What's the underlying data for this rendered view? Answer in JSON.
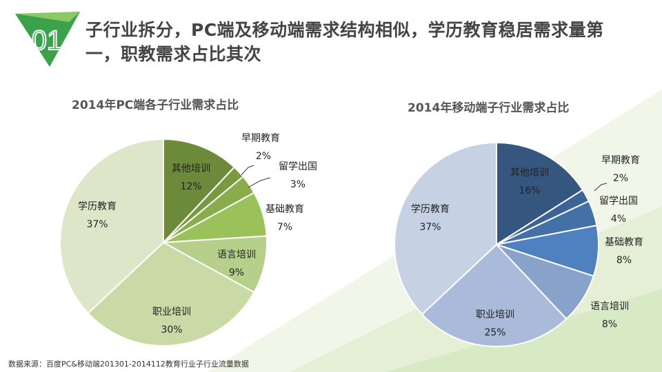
{
  "header": {
    "number": "01",
    "title": "子行业拆分，PC端及移动端需求结构相似，学历教育稳居需求量第一，职教需求占比其次"
  },
  "source": "数据来源：百度PC&移动端201301-2014112教育行业子行业流量数据",
  "chart_data": [
    {
      "type": "pie",
      "title": "2014年PC端各子行业需求占比",
      "categories": [
        "其他培训",
        "早期教育",
        "留学出国",
        "基础教育",
        "语言培训",
        "职业培训",
        "学历教育"
      ],
      "values": [
        12,
        2,
        3,
        7,
        9,
        30,
        37
      ],
      "labels": [
        "12%",
        "2%",
        "3%",
        "7%",
        "9%",
        "30%",
        "37%"
      ],
      "colors": [
        "#6d8a3a",
        "#7a9a40",
        "#89ad4b",
        "#9bc25a",
        "#b6cf8a",
        "#c9daa7",
        "#dde6c9"
      ]
    },
    {
      "type": "pie",
      "title": "2014年移动端子行业需求占比",
      "categories": [
        "其他培训",
        "早期教育",
        "留学出国",
        "基础教育",
        "语言培训",
        "职业培训",
        "学历教育"
      ],
      "values": [
        16,
        2,
        4,
        8,
        8,
        25,
        37
      ],
      "labels": [
        "16%",
        "2%",
        "4%",
        "8%",
        "8%",
        "25%",
        "37%"
      ],
      "colors": [
        "#35577f",
        "#3c6396",
        "#4470a8",
        "#4f80bf",
        "#89a2ca",
        "#a9badb",
        "#c6d1e4"
      ]
    }
  ]
}
